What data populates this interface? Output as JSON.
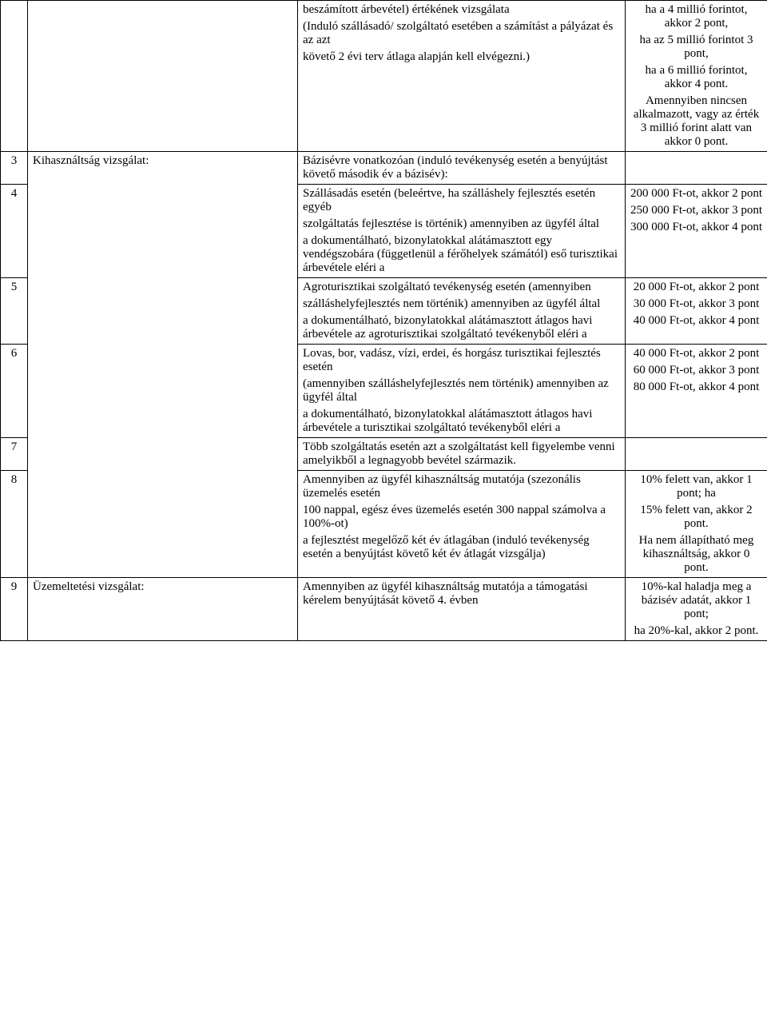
{
  "r1": {
    "c3_a": "beszámított árbevétel) értékének vizsgálata",
    "c3_b": "(Induló szállásadó/ szolgáltató esetében a számítást a pályázat és az azt",
    "c3_c": "követő 2 évi terv átlaga alapján kell elvégezni.)",
    "c4_a": "ha a 4 millió forintot, akkor 2 pont,",
    "c4_b": "ha az 5 millió forintot 3 pont,",
    "c4_c": "ha a 6 millió forintot, akkor 4 pont.",
    "c4_d": "Amennyiben nincsen alkalmazott, vagy az érték 3 millió forint alatt van akkor 0 pont."
  },
  "r3": {
    "num": "3",
    "c2": "Kihasználtság vizsgálat:",
    "c3": "Bázisévre vonatkozóan (induló tevékenység esetén a benyújtást követő második év a bázisév):"
  },
  "r4": {
    "num": "4",
    "c3_a": "Szállásadás esetén (beleértve, ha szálláshely fejlesztés esetén egyéb",
    "c3_b": "szolgáltatás fejlesztése is történik) amennyiben az ügyfél által",
    "c3_c": "a dokumentálható, bizonylatokkal alátámasztott egy vendégszobára (függetlenül a férőhelyek számától) eső turisztikai árbevétele eléri a",
    "c4_a": "200 000 Ft-ot, akkor 2 pont",
    "c4_b": "250 000 Ft-ot, akkor 3 pont",
    "c4_c": "300 000 Ft-ot, akkor 4 pont"
  },
  "r5": {
    "num": "5",
    "c3_a": "Agroturisztikai szolgáltató tevékenység esetén (amennyiben",
    "c3_b": "szálláshelyfejlesztés nem történik) amennyiben az ügyfél által",
    "c3_c": "a dokumentálható, bizonylatokkal alátámasztott átlagos havi árbevétele az agroturisztikai szolgáltató tevékenyből eléri a",
    "c4_a": "20 000 Ft-ot, akkor 2 pont",
    "c4_b": "30 000 Ft-ot, akkor 3 pont",
    "c4_c": "40 000 Ft-ot, akkor 4 pont"
  },
  "r6": {
    "num": "6",
    "c3_a": "Lovas, bor, vadász, vízi, erdei, és horgász turisztikai fejlesztés esetén",
    "c3_b": "(amennyiben szálláshelyfejlesztés nem történik) amennyiben az ügyfél által",
    "c3_c": "a dokumentálható, bizonylatokkal alátámasztott átlagos havi árbevétele a turisztikai szolgáltató tevékenyből eléri a",
    "c4_a": "40 000 Ft-ot, akkor 2 pont",
    "c4_b": "60 000 Ft-ot, akkor 3 pont",
    "c4_c": "80 000 Ft-ot, akkor 4 pont"
  },
  "r7": {
    "num": "7",
    "c3": "Több szolgáltatás esetén azt a szolgáltatást kell figyelembe venni amelyikből a legnagyobb bevétel származik."
  },
  "r8": {
    "num": "8",
    "c3_a": "Amennyiben az ügyfél kihasználtság mutatója (szezonális üzemelés esetén",
    "c3_b": "100 nappal, egész éves üzemelés esetén 300 nappal számolva a 100%-ot)",
    "c3_c": "a fejlesztést megelőző két év átlagában (induló tevékenység esetén a benyújtást követő két év átlagát vizsgálja)",
    "c4_a": "10% felett van, akkor 1 pont; ha",
    "c4_b": "15% felett van, akkor 2 pont.",
    "c4_c": "Ha nem állapítható meg kihasználtság, akkor 0 pont."
  },
  "r9": {
    "num": "9",
    "c2": "Üzemeltetési vizsgálat:",
    "c3": "Amennyiben az ügyfél kihasználtság mutatója a támogatási kérelem benyújtását követő 4. évben",
    "c4_a": "10%-kal haladja meg a bázisév adatát, akkor 1 pont;",
    "c4_b": "ha 20%-kal, akkor 2 pont."
  }
}
